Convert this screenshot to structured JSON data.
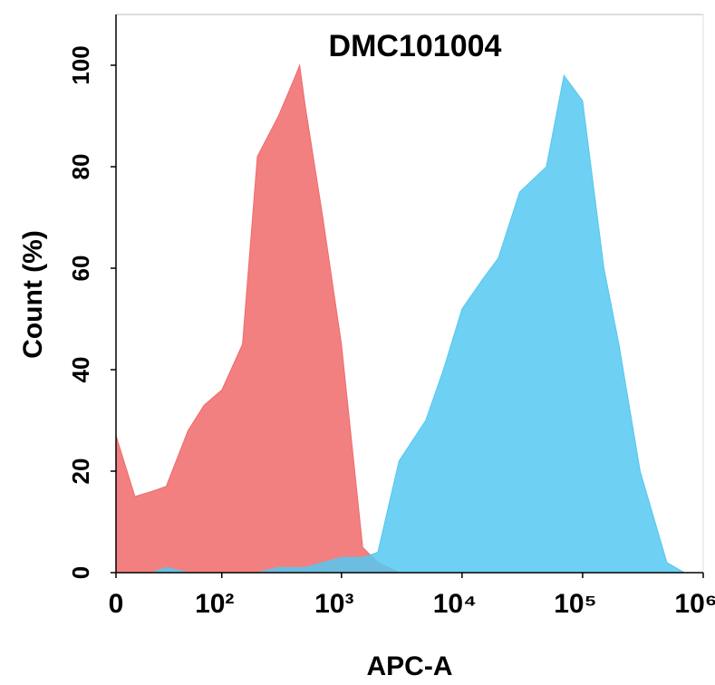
{
  "chart_data": {
    "type": "area",
    "title": "DMC101004",
    "x_label": "APC-A",
    "y_label": "Count  (%)",
    "xscale": "biexponential",
    "x": [
      0,
      10,
      20,
      30,
      50,
      70,
      100,
      150,
      200,
      300,
      400,
      450,
      500,
      700,
      1000,
      1500,
      2000,
      3000,
      5000,
      7000,
      10000,
      15000,
      20000,
      30000,
      50000,
      70000,
      100000,
      150000,
      200000,
      300000,
      500000,
      700000,
      1000000
    ],
    "series": [
      {
        "color": "#f06a6a",
        "values": [
          27,
          15,
          16,
          17,
          28,
          33,
          36,
          45,
          82,
          90,
          97,
          100,
          92,
          70,
          45,
          5,
          2,
          0,
          0,
          0,
          0,
          0,
          0,
          0,
          0,
          0,
          0,
          0,
          0,
          0,
          0,
          0,
          0
        ]
      },
      {
        "color": "#55c8f0",
        "values": [
          0,
          0,
          0,
          1,
          0,
          0,
          0,
          0,
          0,
          1,
          1,
          1,
          1,
          2,
          3,
          3,
          4,
          22,
          30,
          40,
          52,
          58,
          62,
          75,
          80,
          98,
          93,
          60,
          45,
          20,
          2,
          0,
          0
        ]
      }
    ],
    "xlim": [
      0,
      1000000
    ],
    "xticks": [
      {
        "value": 0,
        "label": "0"
      },
      {
        "value": 100,
        "label": "10²"
      },
      {
        "value": 1000,
        "label": "10³"
      },
      {
        "value": 10000,
        "label": "10⁴"
      },
      {
        "value": 100000,
        "label": "10⁵"
      },
      {
        "value": 1000000,
        "label": "10⁶"
      }
    ],
    "ylim": [
      0,
      110
    ],
    "yticks": [
      0,
      20,
      40,
      60,
      80,
      100
    ]
  }
}
